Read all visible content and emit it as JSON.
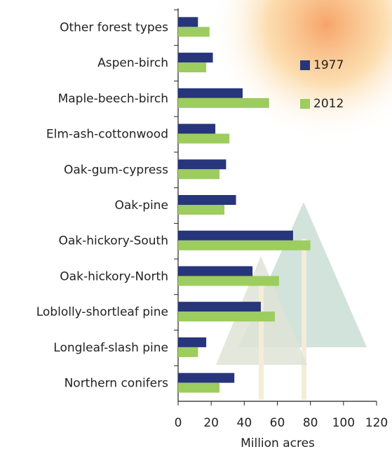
{
  "chart_data": {
    "type": "hbar",
    "categories": [
      "Other forest types",
      "Aspen-birch",
      "Maple-beech-birch",
      "Elm-ash-cottonwood",
      "Oak-gum-cypress",
      "Oak-pine",
      "Oak-hickory-South",
      "Oak-hickory-North",
      "Loblolly-shortleaf pine",
      "Longleaf-slash pine",
      "Northern conifers"
    ],
    "series": [
      {
        "name": "1977",
        "color": "#27357a",
        "values": [
          12,
          21,
          39,
          22.5,
          29,
          35,
          69.5,
          45,
          50,
          17,
          34
        ]
      },
      {
        "name": "2012",
        "color": "#9dcc5f",
        "values": [
          19,
          17,
          55,
          31,
          25,
          28,
          80,
          61,
          58.5,
          12,
          25
        ]
      }
    ],
    "xlabel": "Million acres",
    "xlim": [
      0,
      120
    ],
    "xticks": [
      0,
      20,
      40,
      60,
      80,
      100,
      120
    ]
  }
}
